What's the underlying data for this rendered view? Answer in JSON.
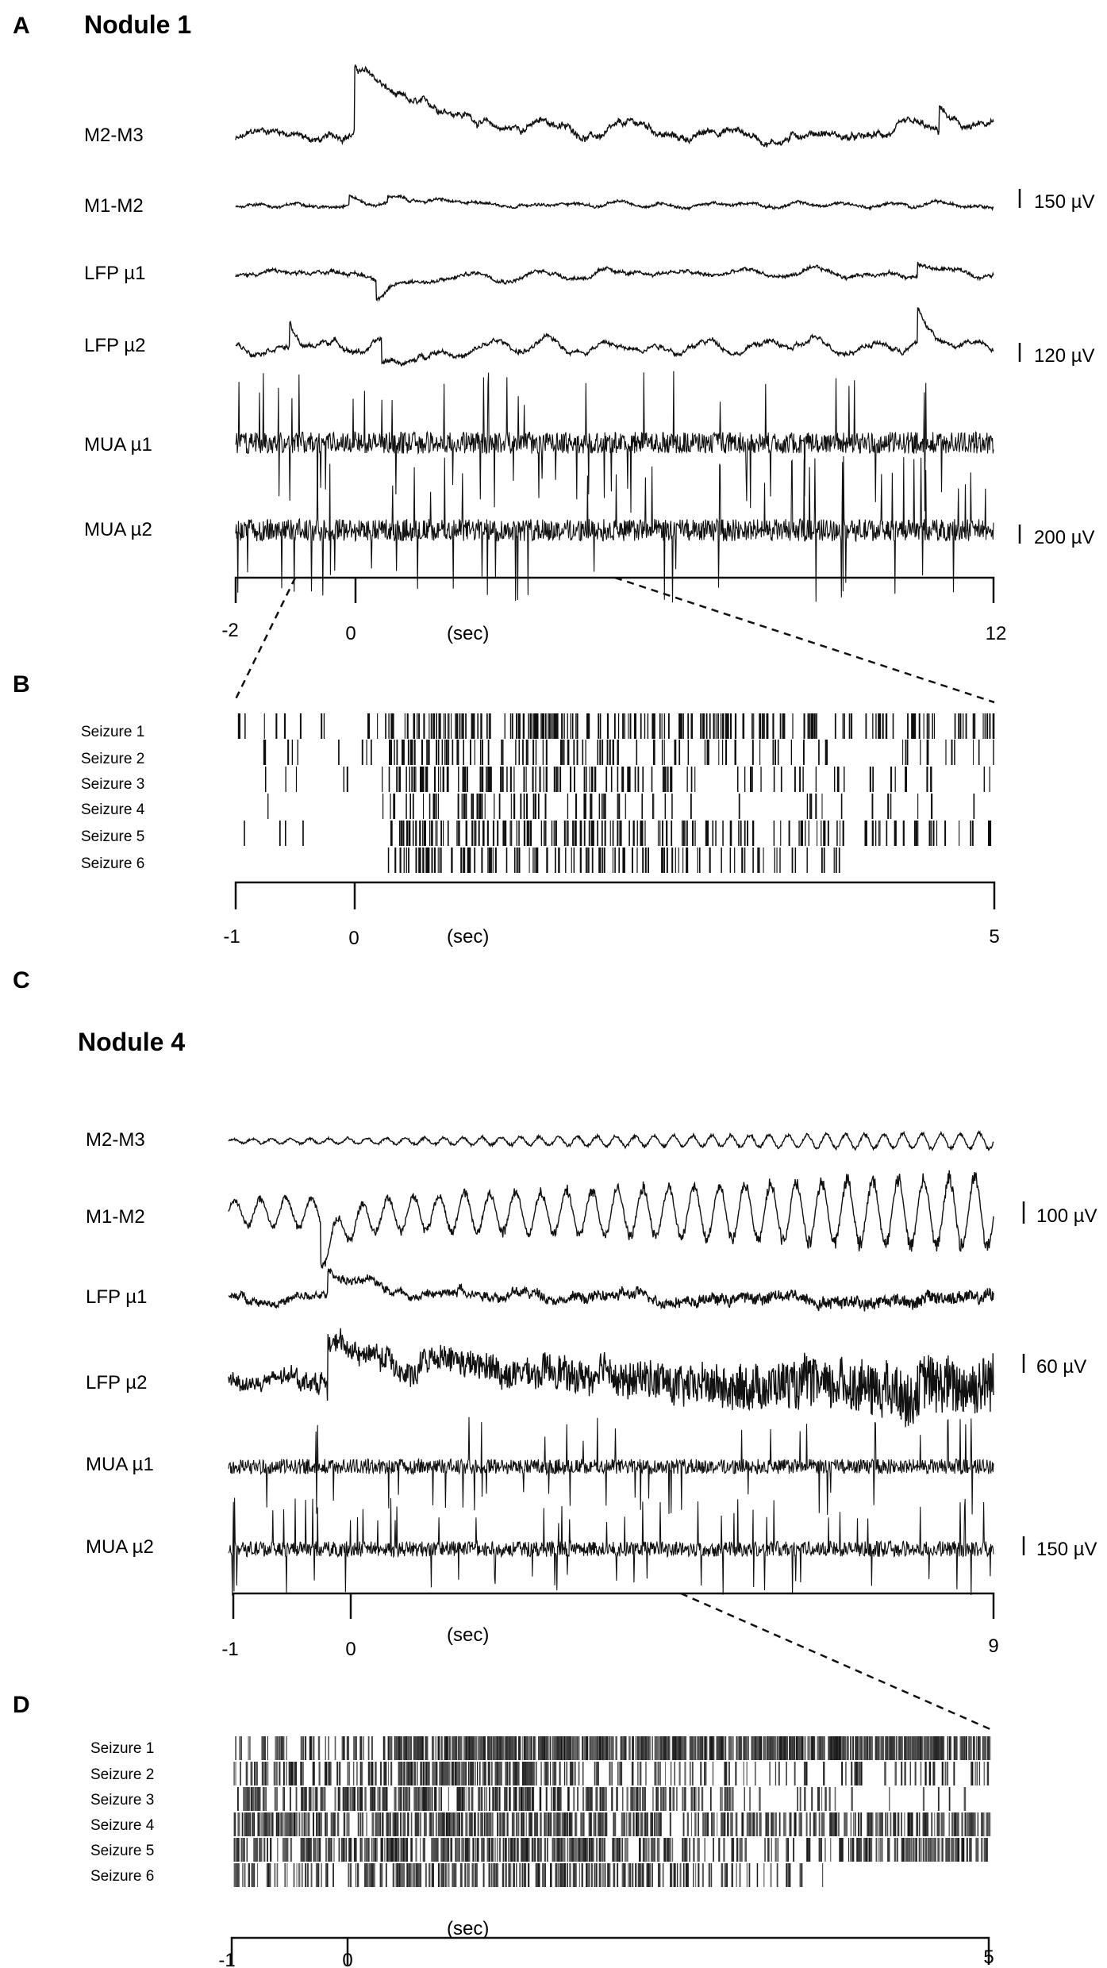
{
  "figure": {
    "panel_a": {
      "label": "A",
      "title": "Nodule 1",
      "traces": [
        "M2-M3",
        "M1-M2",
        "LFP µ1",
        "LFP µ2",
        "MUA µ1",
        "MUA µ2"
      ],
      "scale_bars": [
        "150 µV",
        "120 µV",
        "200 µV"
      ],
      "axis_ticks": [
        "-2",
        "0",
        "12"
      ],
      "axis_unit": "(sec)"
    },
    "panel_b": {
      "label": "B",
      "rows": [
        "Seizure 1",
        "Seizure 2",
        "Seizure 3",
        "Seizure 4",
        "Seizure 5",
        "Seizure 6"
      ],
      "axis_ticks": [
        "-1",
        "0",
        "5"
      ],
      "axis_unit": "(sec)"
    },
    "panel_c": {
      "label": "C",
      "title": "Nodule 4",
      "traces": [
        "M2-M3",
        "M1-M2",
        "LFP µ1",
        "LFP µ2",
        "MUA µ1",
        "MUA µ2"
      ],
      "scale_bars": [
        "100 µV",
        "60 µV",
        "150 µV"
      ],
      "axis_ticks": [
        "-1",
        "0",
        "9"
      ],
      "axis_unit": "(sec)"
    },
    "panel_d": {
      "label": "D",
      "rows": [
        "Seizure 1",
        "Seizure 2",
        "Seizure 3",
        "Seizure 4",
        "Seizure 5",
        "Seizure 6"
      ],
      "axis_ticks": [
        "-1",
        "0",
        "5"
      ],
      "axis_unit": "(sec)"
    }
  },
  "chart_data": [
    {
      "type": "line",
      "panel": "A",
      "title": "Nodule 1",
      "x_range": [
        -2,
        12
      ],
      "x_ticks": [
        -2,
        0,
        12
      ],
      "xlabel": "(sec)",
      "series": [
        {
          "name": "M2-M3",
          "kind": "eeg",
          "amplitude": 0.35,
          "freq": 0.6,
          "events": [
            {
              "t": 0.2,
              "amp": 1.8,
              "decay": 1.6
            },
            {
              "t": 11.0,
              "amp": 0.8,
              "decay": 0.4
            }
          ]
        },
        {
          "name": "M1-M2",
          "kind": "eeg",
          "amplitude": 0.25,
          "freq": 1.2,
          "events": [
            {
              "t": 0.1,
              "amp": 0.6,
              "decay": 0.3
            },
            {
              "t": 0.8,
              "amp": 0.4,
              "decay": 1.2
            }
          ]
        },
        {
          "name": "LFP µ1",
          "kind": "lfp",
          "amplitude": 0.3,
          "freq": 0.8,
          "events": [
            {
              "t": 0.6,
              "amp": -0.9,
              "decay": 0.8
            },
            {
              "t": 10.6,
              "amp": 0.6,
              "decay": 0.3
            }
          ]
        },
        {
          "name": "LFP µ2",
          "kind": "lfp",
          "amplitude": 0.45,
          "freq": 1.0,
          "events": [
            {
              "t": -1.0,
              "amp": 1.0,
              "decay": 0.15
            },
            {
              "t": 0.7,
              "amp": -1.0,
              "decay": 0.9
            },
            {
              "t": 10.6,
              "amp": 1.5,
              "decay": 0.2
            }
          ]
        },
        {
          "name": "MUA µ1",
          "kind": "mua",
          "amplitude": 0.55,
          "freq": 0,
          "events": []
        },
        {
          "name": "MUA µ2",
          "kind": "mua",
          "amplitude": 0.6,
          "freq": 0,
          "events": []
        }
      ],
      "scale_bars": [
        {
          "label": "150 µV",
          "series": "M1-M2"
        },
        {
          "label": "120 µV",
          "series": "LFP µ2"
        },
        {
          "label": "200 µV",
          "series": "MUA µ2"
        }
      ]
    },
    {
      "type": "raster",
      "panel": "B",
      "x_range": [
        -1,
        5
      ],
      "x_ticks": [
        -1,
        0,
        5
      ],
      "xlabel": "(sec)",
      "rows": [
        "Seizure 1",
        "Seizure 2",
        "Seizure 3",
        "Seizure 4",
        "Seizure 5",
        "Seizure 6"
      ],
      "density": [
        [
          0.35,
          1.6,
          1.5,
          1.2,
          1.0
        ],
        [
          0.25,
          1.1,
          0.9,
          0.5,
          0.35
        ],
        [
          0.15,
          1.3,
          1.0,
          0.4,
          0.3
        ],
        [
          0.05,
          1.0,
          0.6,
          0.2,
          0.15
        ],
        [
          0.1,
          1.5,
          1.3,
          0.9,
          0.7
        ],
        [
          0.0,
          1.4,
          1.1,
          0.6,
          0.0
        ]
      ]
    },
    {
      "type": "line",
      "panel": "C",
      "title": "Nodule 4",
      "x_range": [
        -1,
        9
      ],
      "x_ticks": [
        -1,
        0,
        9
      ],
      "xlabel": "(sec)",
      "series": [
        {
          "name": "M2-M3",
          "kind": "osc",
          "amplitude": 0.25,
          "freq": 4.0,
          "growth": 2.2,
          "events": []
        },
        {
          "name": "M1-M2",
          "kind": "osc",
          "amplitude": 0.9,
          "freq": 3.0,
          "growth": 1.8,
          "events": [
            {
              "t": 0.2,
              "amp": -1.0,
              "decay": 0.3
            }
          ]
        },
        {
          "name": "LFP µ1",
          "kind": "lfpnoise",
          "amplitude": 0.2,
          "freq": 0,
          "growth": 1.5,
          "events": [
            {
              "t": 0.3,
              "amp": 1.2,
              "decay": 0.9
            },
            {
              "t": 2.0,
              "amp": 0.4,
              "decay": 1.0
            }
          ]
        },
        {
          "name": "LFP µ2",
          "kind": "lfpnoise",
          "amplitude": 0.25,
          "freq": 0,
          "growth": 2.5,
          "events": [
            {
              "t": 0.3,
              "amp": 1.4,
              "decay": 0.9
            },
            {
              "t": 1.5,
              "amp": 0.3,
              "decay": 1.0
            }
          ]
        },
        {
          "name": "MUA µ1",
          "kind": "mua",
          "amplitude": 0.55,
          "freq": 0,
          "events": []
        },
        {
          "name": "MUA µ2",
          "kind": "mua",
          "amplitude": 0.6,
          "freq": 0,
          "events": []
        }
      ],
      "scale_bars": [
        {
          "label": "100 µV",
          "series": "M1-M2"
        },
        {
          "label": "60 µV",
          "series": "LFP µ2"
        },
        {
          "label": "150 µV",
          "series": "MUA µ2"
        }
      ]
    },
    {
      "type": "raster",
      "panel": "D",
      "x_range": [
        -1,
        5
      ],
      "x_ticks": [
        -1,
        0,
        5
      ],
      "xlabel": "(sec)",
      "rows": [
        "Seizure 1",
        "Seizure 2",
        "Seizure 3",
        "Seizure 4",
        "Seizure 5",
        "Seizure 6"
      ],
      "density": [
        [
          0.8,
          3.0,
          3.0,
          3.0,
          3.0
        ],
        [
          1.0,
          2.0,
          0.8,
          0.4,
          0.6
        ],
        [
          1.5,
          1.8,
          1.2,
          0.5,
          0.1
        ],
        [
          1.8,
          2.0,
          1.6,
          1.3,
          1.5
        ],
        [
          1.6,
          2.2,
          1.8,
          0.6,
          1.8
        ],
        [
          0.9,
          1.6,
          1.4,
          0.5,
          0.0
        ]
      ]
    }
  ]
}
